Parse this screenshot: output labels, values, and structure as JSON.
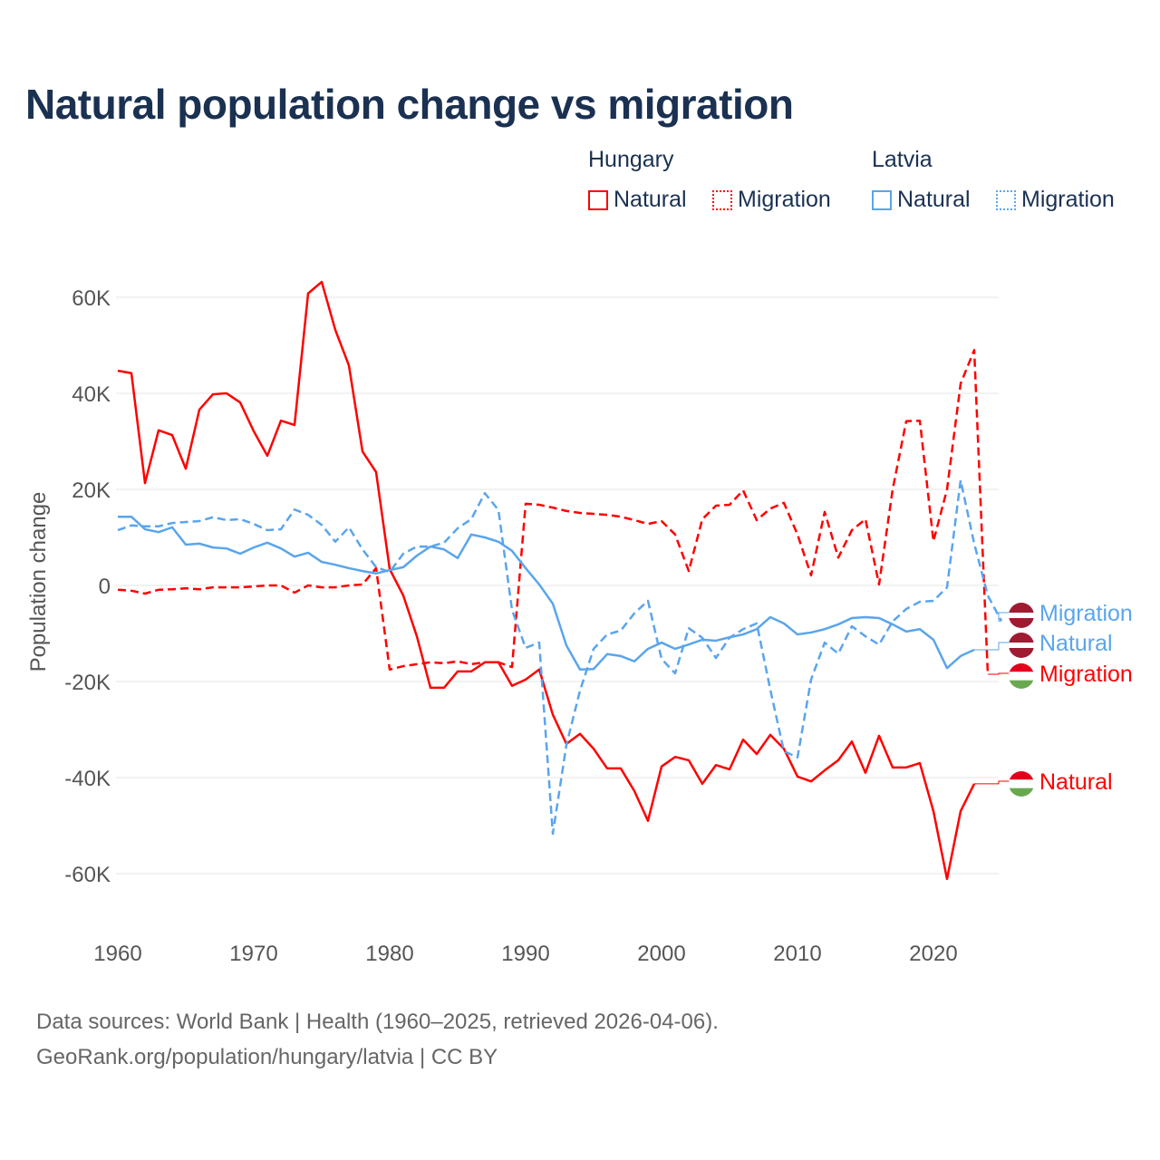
{
  "title": "Natural population change vs migration",
  "legend": {
    "groups": [
      {
        "name": "Hungary",
        "items": [
          {
            "label": "Natural",
            "style": "solid",
            "color": "#ff0000"
          },
          {
            "label": "Migration",
            "style": "dotted",
            "color": "#ff0000"
          }
        ]
      },
      {
        "name": "Latvia",
        "items": [
          {
            "label": "Natural",
            "style": "solid",
            "color": "#5aa5ec"
          },
          {
            "label": "Migration",
            "style": "dotted",
            "color": "#5aa5ec"
          }
        ]
      }
    ]
  },
  "source": {
    "line1": "Data sources: World Bank | Health (1960–2025, retrieved 2026-04-06).",
    "line2": "GeoRank.org/population/hungary/latvia | CC BY"
  },
  "chart_data": {
    "type": "line",
    "title": "Natural population change vs migration",
    "xlabel": "",
    "ylabel": "Population change",
    "xlim": [
      1960,
      2025
    ],
    "ylim": [
      -70000,
      65000
    ],
    "x_ticks": [
      1960,
      1970,
      1980,
      1990,
      2000,
      2010,
      2020
    ],
    "x_tick_labels": [
      "1960",
      "1970",
      "1980",
      "1990",
      "2000",
      "2010",
      "2020"
    ],
    "y_ticks": [
      60000,
      40000,
      20000,
      0,
      -20000,
      -40000,
      -60000
    ],
    "y_tick_labels": [
      "60K",
      "40K",
      "20K",
      "0",
      "-20K",
      "-40K",
      "-60K"
    ],
    "grid": "horizontal",
    "legend_position": "top-right",
    "series": [
      {
        "name": "Hungary Natural",
        "country": "Hungary",
        "end_label": "Natural",
        "color": "#ff0000",
        "dash": false,
        "start": 1960,
        "values": [
          44700,
          44200,
          21300,
          32300,
          31300,
          24300,
          36600,
          39800,
          40000,
          38100,
          32100,
          27000,
          34300,
          33400,
          60800,
          63200,
          53200,
          45800,
          27900,
          23600,
          3400,
          -2100,
          -10600,
          -21300,
          -21300,
          -17900,
          -17900,
          -16000,
          -16000,
          -20900,
          -19600,
          -17500,
          -26900,
          -33000,
          -30900,
          -34000,
          -38100,
          -38100,
          -42800,
          -49000,
          -37700,
          -35700,
          -36400,
          -41300,
          -37400,
          -38300,
          -32100,
          -35100,
          -31100,
          -34000,
          -39800,
          -40800,
          -38500,
          -36400,
          -32500,
          -39000,
          -31300,
          -37900,
          -37900,
          -37000,
          -47000,
          -61100,
          -47000,
          -41300
        ]
      },
      {
        "name": "Hungary Migration",
        "country": "Hungary",
        "end_label": "Migration",
        "color": "#ff0000",
        "dash": true,
        "start": 1960,
        "values": [
          -900,
          -1100,
          -1700,
          -900,
          -800,
          -600,
          -800,
          -400,
          -400,
          -400,
          -200,
          0,
          0,
          -1500,
          0,
          -400,
          -400,
          0,
          200,
          3600,
          -17500,
          -16800,
          -16400,
          -16000,
          -16200,
          -15800,
          -16400,
          -16000,
          -16000,
          -17000,
          17000,
          16800,
          16200,
          15500,
          15100,
          14900,
          14700,
          14300,
          13600,
          12800,
          13400,
          10600,
          3000,
          13800,
          16600,
          16800,
          19800,
          13600,
          16000,
          17200,
          10600,
          2100,
          15300,
          5800,
          11500,
          13800,
          200,
          20000,
          34200,
          34300,
          9200,
          20000,
          42000,
          49000,
          -18500
        ]
      },
      {
        "name": "Latvia Natural",
        "country": "Latvia",
        "end_label": "Natural",
        "color": "#5aa5ec",
        "dash": false,
        "start": 1960,
        "values": [
          14300,
          14300,
          11700,
          11100,
          12100,
          8500,
          8700,
          7900,
          7700,
          6600,
          7900,
          8900,
          7700,
          6000,
          6800,
          4900,
          4300,
          3600,
          3000,
          2500,
          3200,
          3800,
          6200,
          8100,
          7500,
          5700,
          10600,
          10000,
          9100,
          7200,
          3600,
          200,
          -3800,
          -12500,
          -17500,
          -17400,
          -14300,
          -14700,
          -15800,
          -13200,
          -11900,
          -13200,
          -12300,
          -11300,
          -11500,
          -10800,
          -10200,
          -9100,
          -6600,
          -7900,
          -10200,
          -9800,
          -9100,
          -8100,
          -6800,
          -6600,
          -6800,
          -8100,
          -9600,
          -9100,
          -11300,
          -17200,
          -14700,
          -13400
        ]
      },
      {
        "name": "Latvia Migration",
        "country": "Latvia",
        "end_label": "Migration",
        "color": "#5aa5ec",
        "dash": true,
        "start": 1960,
        "values": [
          11500,
          12500,
          12300,
          12300,
          13000,
          13200,
          13400,
          14200,
          13600,
          13800,
          12800,
          11500,
          11700,
          15800,
          14700,
          12600,
          9100,
          12100,
          7500,
          3800,
          2800,
          6600,
          8100,
          8100,
          8900,
          11900,
          13800,
          19200,
          15700,
          -5100,
          -13000,
          -11900,
          -51700,
          -33200,
          -21900,
          -13200,
          -10200,
          -9400,
          -5800,
          -3200,
          -15300,
          -18300,
          -8900,
          -10900,
          -15100,
          -10900,
          -9100,
          -7900,
          -21700,
          -34500,
          -35800,
          -19600,
          -11900,
          -14200,
          -8500,
          -10600,
          -12300,
          -7500,
          -4900,
          -3400,
          -3200,
          -400,
          21900,
          8700,
          -2100,
          -7400
        ]
      }
    ]
  }
}
